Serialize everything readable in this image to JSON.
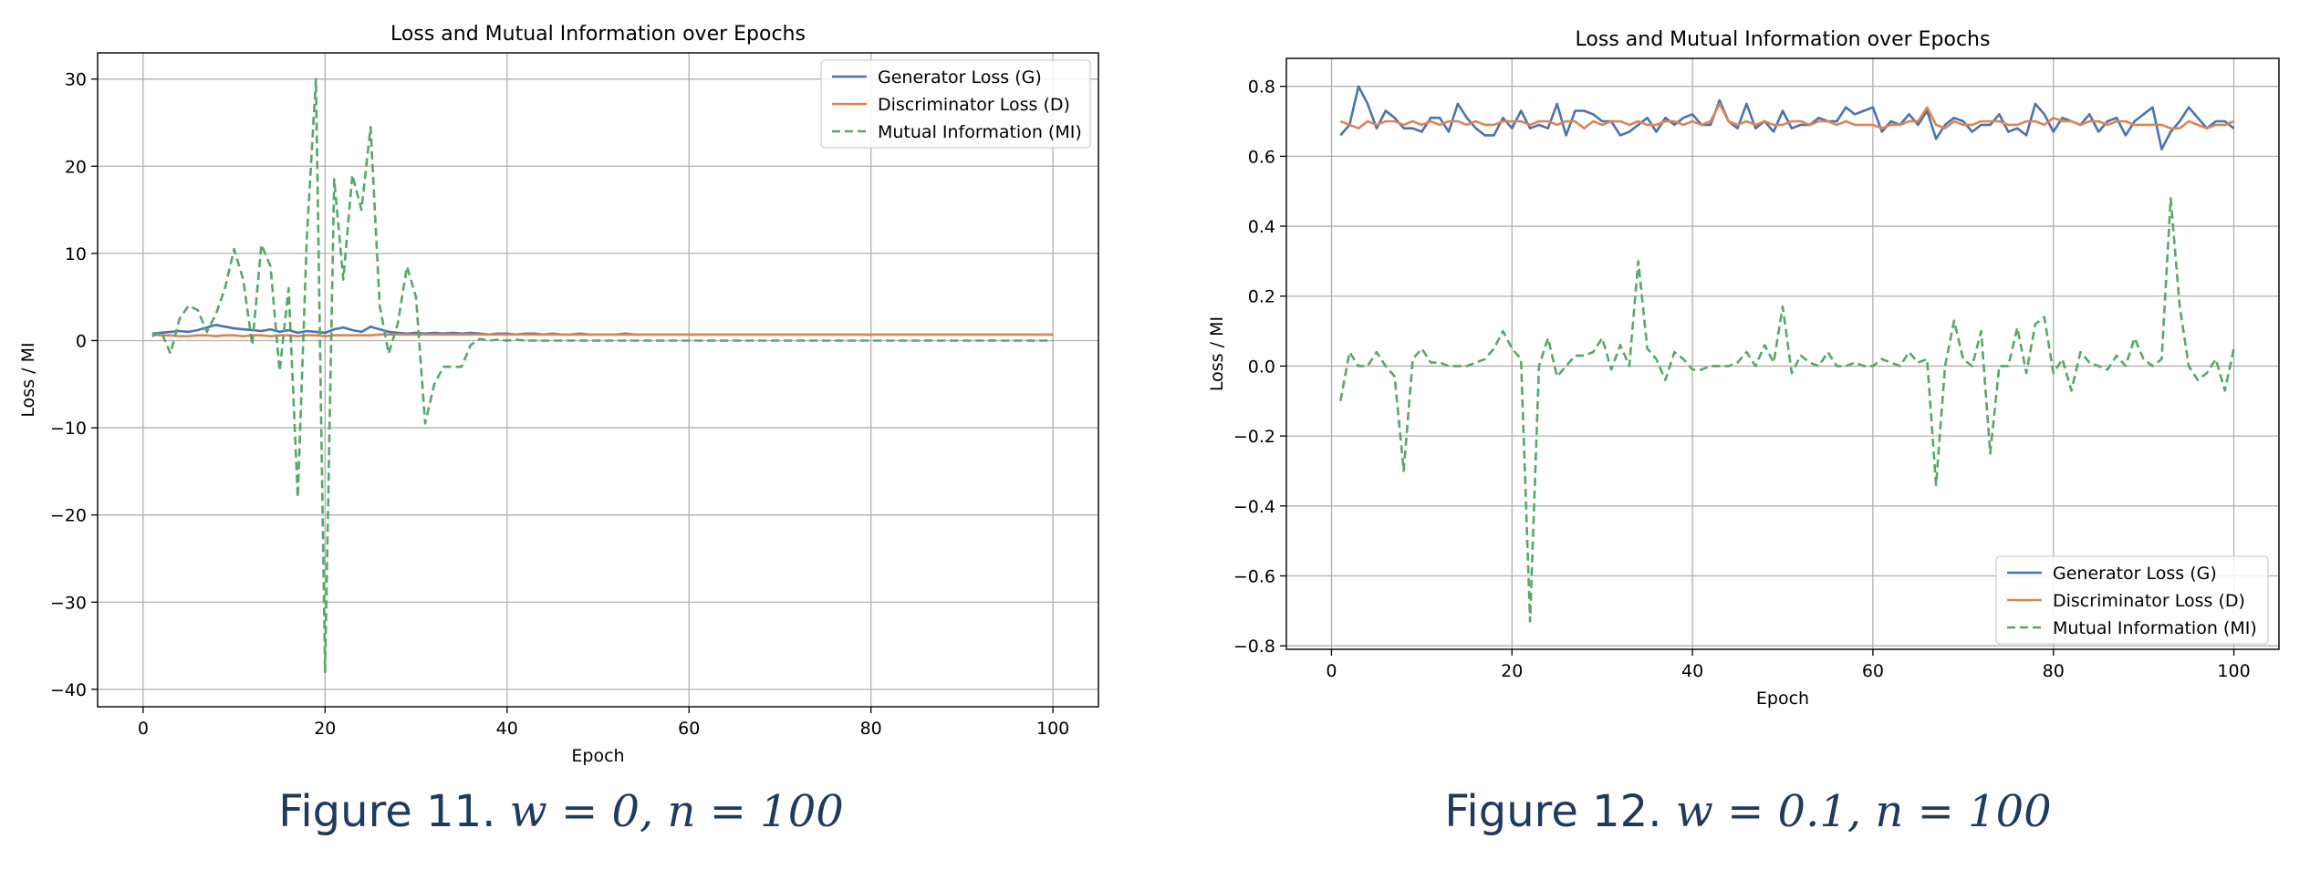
{
  "chart_data": [
    {
      "type": "line",
      "title": "Loss and Mutual Information over Epochs",
      "xlabel": "Epoch",
      "ylabel": "Loss / MI",
      "xlim": [
        -5,
        105
      ],
      "ylim": [
        -42,
        33
      ],
      "xticks": [
        0,
        20,
        40,
        60,
        80,
        100
      ],
      "yticks": [
        -40,
        -30,
        -20,
        -10,
        0,
        10,
        20,
        30
      ],
      "grid": true,
      "legend_position": "top-right",
      "x": [
        1,
        2,
        3,
        4,
        5,
        6,
        7,
        8,
        9,
        10,
        11,
        12,
        13,
        14,
        15,
        16,
        17,
        18,
        19,
        20,
        21,
        22,
        23,
        24,
        25,
        26,
        27,
        28,
        29,
        30,
        31,
        32,
        33,
        34,
        35,
        36,
        37,
        38,
        39,
        40,
        41,
        42,
        43,
        44,
        45,
        46,
        47,
        48,
        49,
        50,
        51,
        52,
        53,
        54,
        55,
        56,
        57,
        58,
        59,
        60,
        61,
        62,
        63,
        64,
        65,
        66,
        67,
        68,
        69,
        70,
        71,
        72,
        73,
        74,
        75,
        76,
        77,
        78,
        79,
        80,
        81,
        82,
        83,
        84,
        85,
        86,
        87,
        88,
        89,
        90,
        91,
        92,
        93,
        94,
        95,
        96,
        97,
        98,
        99,
        100
      ],
      "series": [
        {
          "name": "Generator Loss (G)",
          "color": "#4c72b0",
          "dash": "solid",
          "values": [
            0.8,
            0.9,
            1.0,
            1.1,
            1.0,
            1.2,
            1.5,
            1.8,
            1.6,
            1.4,
            1.3,
            1.2,
            1.1,
            1.3,
            1.0,
            1.2,
            0.9,
            1.1,
            1.0,
            0.9,
            1.3,
            1.5,
            1.2,
            1.0,
            1.6,
            1.3,
            1.0,
            0.9,
            0.8,
            0.9,
            0.8,
            0.9,
            0.8,
            0.9,
            0.8,
            0.9,
            0.8,
            0.7,
            0.8,
            0.8,
            0.7,
            0.8,
            0.8,
            0.7,
            0.8,
            0.7,
            0.7,
            0.8,
            0.7,
            0.7,
            0.7,
            0.7,
            0.8,
            0.7,
            0.7,
            0.7,
            0.7,
            0.7,
            0.7,
            0.7,
            0.7,
            0.7,
            0.7,
            0.7,
            0.7,
            0.7,
            0.7,
            0.7,
            0.7,
            0.7,
            0.7,
            0.7,
            0.7,
            0.7,
            0.7,
            0.7,
            0.7,
            0.7,
            0.7,
            0.7,
            0.7,
            0.7,
            0.7,
            0.7,
            0.7,
            0.7,
            0.7,
            0.7,
            0.7,
            0.7,
            0.7,
            0.7,
            0.7,
            0.7,
            0.7,
            0.7,
            0.7,
            0.7,
            0.7,
            0.7
          ]
        },
        {
          "name": "Discriminator Loss (D)",
          "color": "#dd8452",
          "dash": "solid",
          "values": [
            0.7,
            0.6,
            0.6,
            0.5,
            0.5,
            0.6,
            0.6,
            0.5,
            0.6,
            0.6,
            0.5,
            0.6,
            0.6,
            0.5,
            0.6,
            0.6,
            0.5,
            0.6,
            0.6,
            0.5,
            0.6,
            0.6,
            0.6,
            0.6,
            0.6,
            0.7,
            0.7,
            0.7,
            0.7,
            0.7,
            0.7,
            0.7,
            0.7,
            0.7,
            0.7,
            0.7,
            0.7,
            0.7,
            0.7,
            0.7,
            0.7,
            0.7,
            0.7,
            0.7,
            0.7,
            0.7,
            0.7,
            0.7,
            0.7,
            0.7,
            0.7,
            0.7,
            0.7,
            0.7,
            0.7,
            0.7,
            0.7,
            0.7,
            0.7,
            0.7,
            0.7,
            0.7,
            0.7,
            0.7,
            0.7,
            0.7,
            0.7,
            0.7,
            0.7,
            0.7,
            0.7,
            0.7,
            0.7,
            0.7,
            0.7,
            0.7,
            0.7,
            0.7,
            0.7,
            0.7,
            0.7,
            0.7,
            0.7,
            0.7,
            0.7,
            0.7,
            0.7,
            0.7,
            0.7,
            0.7,
            0.7,
            0.7,
            0.7,
            0.7,
            0.7,
            0.7,
            0.7,
            0.7,
            0.7,
            0.7
          ]
        },
        {
          "name": "Mutual Information (MI)",
          "color": "#55a868",
          "dash": "dashed",
          "values": [
            0.5,
            1.0,
            -1.5,
            2.5,
            4.0,
            3.5,
            1.0,
            3.0,
            6.0,
            10.5,
            7.0,
            -0.5,
            11.0,
            8.5,
            -3.5,
            6.0,
            -18.0,
            12.0,
            30.0,
            -38.0,
            18.5,
            7.0,
            19.0,
            15.0,
            24.5,
            4.0,
            -1.5,
            2.0,
            8.5,
            5.0,
            -9.5,
            -5.0,
            -3.0,
            -3.0,
            -3.0,
            -0.5,
            0.2,
            0.0,
            0.1,
            0.0,
            0.1,
            0.0,
            0.0,
            0.0,
            0.0,
            0.0,
            0.0,
            0.0,
            0.0,
            0.0,
            0.0,
            0.0,
            0.0,
            0.0,
            0.0,
            0.0,
            0.0,
            0.0,
            0.0,
            0.0,
            0.0,
            0.0,
            0.0,
            0.0,
            0.0,
            0.0,
            0.0,
            0.0,
            0.0,
            0.0,
            0.0,
            0.0,
            0.0,
            0.0,
            0.0,
            0.0,
            0.0,
            0.0,
            0.0,
            0.0,
            0.0,
            0.0,
            0.0,
            0.0,
            0.0,
            0.0,
            0.0,
            0.0,
            0.0,
            0.0,
            0.0,
            0.0,
            0.0,
            0.0,
            0.0,
            0.0,
            0.0,
            0.0,
            0.0,
            0.0
          ]
        }
      ]
    },
    {
      "type": "line",
      "title": "Loss and Mutual Information over Epochs",
      "xlabel": "Epoch",
      "ylabel": "Loss / MI",
      "xlim": [
        -5,
        105
      ],
      "ylim": [
        -0.81,
        0.88
      ],
      "xticks": [
        0,
        20,
        40,
        60,
        80,
        100
      ],
      "yticks": [
        -0.8,
        -0.6,
        -0.4,
        -0.2,
        0.0,
        0.2,
        0.4,
        0.6,
        0.8
      ],
      "grid": true,
      "legend_position": "bottom-right",
      "x": [
        1,
        2,
        3,
        4,
        5,
        6,
        7,
        8,
        9,
        10,
        11,
        12,
        13,
        14,
        15,
        16,
        17,
        18,
        19,
        20,
        21,
        22,
        23,
        24,
        25,
        26,
        27,
        28,
        29,
        30,
        31,
        32,
        33,
        34,
        35,
        36,
        37,
        38,
        39,
        40,
        41,
        42,
        43,
        44,
        45,
        46,
        47,
        48,
        49,
        50,
        51,
        52,
        53,
        54,
        55,
        56,
        57,
        58,
        59,
        60,
        61,
        62,
        63,
        64,
        65,
        66,
        67,
        68,
        69,
        70,
        71,
        72,
        73,
        74,
        75,
        76,
        77,
        78,
        79,
        80,
        81,
        82,
        83,
        84,
        85,
        86,
        87,
        88,
        89,
        90,
        91,
        92,
        93,
        94,
        95,
        96,
        97,
        98,
        99,
        100
      ],
      "series": [
        {
          "name": "Generator Loss (G)",
          "color": "#4c72b0",
          "dash": "solid",
          "values": [
            0.66,
            0.69,
            0.8,
            0.75,
            0.68,
            0.73,
            0.71,
            0.68,
            0.68,
            0.67,
            0.71,
            0.71,
            0.67,
            0.75,
            0.71,
            0.68,
            0.66,
            0.66,
            0.71,
            0.68,
            0.73,
            0.68,
            0.69,
            0.68,
            0.75,
            0.66,
            0.73,
            0.73,
            0.72,
            0.7,
            0.7,
            0.66,
            0.67,
            0.69,
            0.71,
            0.67,
            0.71,
            0.69,
            0.71,
            0.72,
            0.69,
            0.69,
            0.76,
            0.7,
            0.68,
            0.75,
            0.68,
            0.7,
            0.67,
            0.73,
            0.68,
            0.69,
            0.69,
            0.71,
            0.7,
            0.7,
            0.74,
            0.72,
            0.73,
            0.74,
            0.67,
            0.7,
            0.69,
            0.72,
            0.69,
            0.73,
            0.65,
            0.69,
            0.71,
            0.7,
            0.67,
            0.69,
            0.69,
            0.72,
            0.67,
            0.68,
            0.66,
            0.75,
            0.72,
            0.67,
            0.71,
            0.7,
            0.69,
            0.72,
            0.67,
            0.7,
            0.71,
            0.66,
            0.7,
            0.72,
            0.74,
            0.62,
            0.67,
            0.7,
            0.74,
            0.71,
            0.68,
            0.7,
            0.7,
            0.68
          ]
        },
        {
          "name": "Discriminator Loss (D)",
          "color": "#dd8452",
          "dash": "solid",
          "values": [
            0.7,
            0.69,
            0.68,
            0.7,
            0.69,
            0.7,
            0.7,
            0.69,
            0.7,
            0.69,
            0.7,
            0.69,
            0.7,
            0.7,
            0.69,
            0.7,
            0.69,
            0.69,
            0.7,
            0.7,
            0.7,
            0.69,
            0.7,
            0.7,
            0.69,
            0.7,
            0.7,
            0.68,
            0.7,
            0.69,
            0.7,
            0.7,
            0.69,
            0.7,
            0.69,
            0.69,
            0.7,
            0.7,
            0.69,
            0.7,
            0.69,
            0.7,
            0.75,
            0.7,
            0.69,
            0.7,
            0.69,
            0.7,
            0.69,
            0.69,
            0.7,
            0.7,
            0.69,
            0.7,
            0.7,
            0.69,
            0.7,
            0.69,
            0.69,
            0.69,
            0.68,
            0.69,
            0.69,
            0.7,
            0.7,
            0.74,
            0.69,
            0.68,
            0.7,
            0.69,
            0.69,
            0.7,
            0.7,
            0.7,
            0.69,
            0.69,
            0.7,
            0.7,
            0.69,
            0.71,
            0.7,
            0.7,
            0.69,
            0.7,
            0.7,
            0.69,
            0.7,
            0.7,
            0.69,
            0.69,
            0.69,
            0.69,
            0.68,
            0.68,
            0.7,
            0.69,
            0.68,
            0.69,
            0.69,
            0.7
          ]
        },
        {
          "name": "Mutual Information (MI)",
          "color": "#55a868",
          "dash": "dashed",
          "values": [
            -0.1,
            0.04,
            0.0,
            0.0,
            0.04,
            0.0,
            -0.03,
            -0.3,
            0.02,
            0.05,
            0.01,
            0.01,
            0.0,
            0.0,
            0.0,
            0.01,
            0.02,
            0.05,
            0.1,
            0.05,
            0.02,
            -0.73,
            0.0,
            0.08,
            -0.03,
            0.0,
            0.03,
            0.03,
            0.04,
            0.08,
            -0.01,
            0.06,
            0.0,
            0.3,
            0.05,
            0.02,
            -0.04,
            0.04,
            0.02,
            -0.01,
            -0.01,
            0.0,
            0.0,
            0.0,
            0.01,
            0.04,
            0.0,
            0.06,
            0.01,
            0.17,
            -0.02,
            0.03,
            0.01,
            0.0,
            0.04,
            0.0,
            0.0,
            0.01,
            0.0,
            0.0,
            0.02,
            0.01,
            0.0,
            0.04,
            0.01,
            0.02,
            -0.34,
            0.0,
            0.13,
            0.02,
            0.0,
            0.1,
            -0.25,
            0.0,
            0.0,
            0.11,
            -0.02,
            0.12,
            0.14,
            -0.02,
            0.02,
            -0.07,
            0.04,
            0.01,
            0.0,
            -0.01,
            0.03,
            0.0,
            0.08,
            0.02,
            0.0,
            0.02,
            0.48,
            0.17,
            0.0,
            -0.04,
            -0.02,
            0.02,
            -0.07,
            0.05
          ]
        }
      ]
    }
  ],
  "captions": [
    {
      "label": "Figure 11.",
      "math": "w = 0, n = 100"
    },
    {
      "label": "Figure 12.",
      "math": "w = 0.1, n = 100"
    }
  ]
}
